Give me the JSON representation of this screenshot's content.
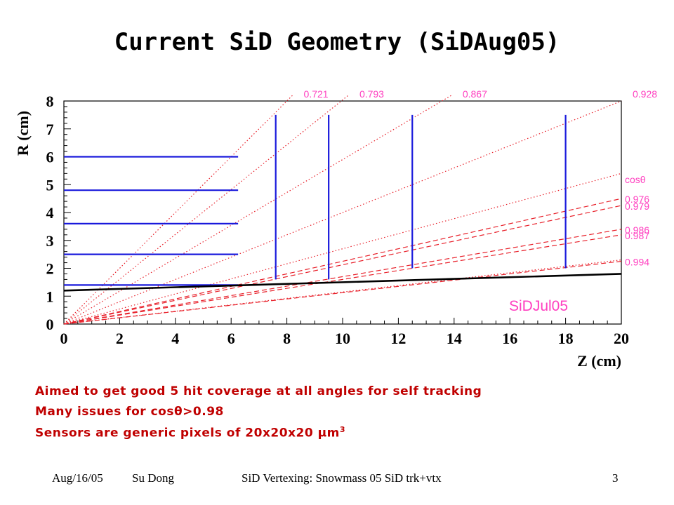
{
  "slide": {
    "title": "Current SiD Geometry (SiDAug05)",
    "bullets": [
      {
        "pre": "Aimed to get good 5 hit coverage at all angles for self tracking",
        "sym": "",
        "post": "",
        "sup": ""
      },
      {
        "pre": "Many issues for cos",
        "sym": "θ",
        "post": ">0.98",
        "sup": ""
      },
      {
        "pre": "Sensors are generic pixels of 20x20x20 ",
        "sym": "μ",
        "post": "m",
        "sup": "3"
      }
    ],
    "footer": {
      "date": "Aug/16/05",
      "author": "Su Dong",
      "talk": "SiD Vertexing: Snowmass 05 SiD trk+vtx",
      "page": "3"
    }
  },
  "chart_data": {
    "type": "line",
    "xlabel": "Z (cm)",
    "ylabel": "R (cm)",
    "xlim": [
      0,
      20
    ],
    "ylim": [
      0,
      8
    ],
    "x_ticks": [
      "0",
      "2",
      "4",
      "6",
      "8",
      "10",
      "12",
      "14",
      "16",
      "18",
      "20"
    ],
    "y_ticks": [
      "0",
      "1",
      "2",
      "3",
      "4",
      "5",
      "6",
      "7",
      "8"
    ],
    "model_label": "SiDJul05",
    "colors": {
      "layers": "#1a1adc",
      "angle_lines": "#e8202a",
      "labels": "#ff40c0",
      "beampipe": "#000000"
    },
    "barrel_layers": [
      {
        "r": 1.4,
        "z": [
          0,
          6.25
        ]
      },
      {
        "r": 2.5,
        "z": [
          0,
          6.25
        ]
      },
      {
        "r": 3.6,
        "z": [
          0,
          6.25
        ]
      },
      {
        "r": 4.8,
        "z": [
          0,
          6.25
        ]
      },
      {
        "r": 6.0,
        "z": [
          0,
          6.25
        ]
      }
    ],
    "disks": [
      {
        "z": 7.6,
        "r": [
          1.6,
          7.5
        ]
      },
      {
        "z": 9.5,
        "r": [
          1.6,
          7.5
        ]
      },
      {
        "z": 12.5,
        "r": [
          2.0,
          7.5
        ]
      },
      {
        "z": 18.0,
        "r": [
          2.0,
          7.5
        ]
      }
    ],
    "beampipe": {
      "points": [
        [
          0,
          1.2
        ],
        [
          20,
          1.8
        ]
      ]
    },
    "angle_lines": [
      {
        "label": "0.721",
        "style": "dotted",
        "end": [
          8.2,
          8.2
        ]
      },
      {
        "label": "0.793",
        "style": "dotted",
        "end": [
          10.2,
          8.2
        ]
      },
      {
        "label": "0.867",
        "style": "dotted",
        "end": [
          13.9,
          8.2
        ]
      },
      {
        "label": "0.928",
        "style": "dotted",
        "end": [
          20.0,
          8.0
        ]
      },
      {
        "label": "",
        "style": "dotted",
        "end": [
          20.0,
          5.4
        ]
      },
      {
        "label": "",
        "style": "dotted",
        "end": [
          20.0,
          2.3
        ]
      },
      {
        "label": "0.976",
        "style": "dashed",
        "end": [
          20.0,
          4.5
        ]
      },
      {
        "label": "0.979",
        "style": "dashed",
        "end": [
          20.0,
          4.25
        ]
      },
      {
        "label": "0.986",
        "style": "dashed",
        "end": [
          20.0,
          3.4
        ]
      },
      {
        "label": "0.987",
        "style": "dashed",
        "end": [
          20.0,
          3.2
        ]
      },
      {
        "label": "0.994",
        "style": "dashed",
        "end": [
          20.0,
          2.25
        ]
      }
    ],
    "right_header": "cosθ"
  }
}
